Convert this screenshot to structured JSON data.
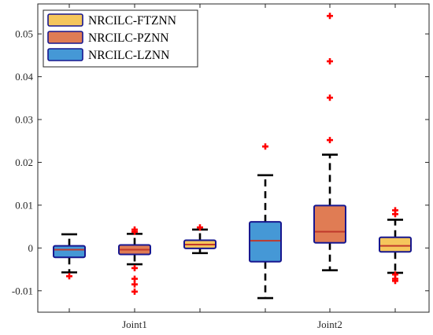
{
  "chart_data": {
    "type": "box",
    "grid": false,
    "legend_position": "top-left",
    "ylim": [
      -0.015,
      0.057
    ],
    "yticks": [
      -0.01,
      0,
      0.01,
      0.02,
      0.03,
      0.04,
      0.05
    ],
    "ytick_labels": [
      "-0.01",
      "0",
      "0.01",
      "0.02",
      "0.03",
      "0.04",
      "0.05"
    ],
    "groups": [
      "Joint1",
      "Joint2"
    ],
    "series": [
      {
        "name": "NRCILC-FTZNN",
        "color": "#F5C65C"
      },
      {
        "name": "NRCILC-PZNN",
        "color": "#E07C54"
      },
      {
        "name": "NRCILC-LZNN",
        "color": "#4598D6"
      }
    ],
    "outline_color": "#17178F",
    "median_color": "#C0392B",
    "whisker_color": "#000000",
    "outlier_color": "#FF0000",
    "boxes": [
      {
        "group": "Joint1",
        "series": "NRCILC-LZNN",
        "whisker_low": -0.0057,
        "q1": -0.0022,
        "median": -0.0004,
        "q3": 0.0005,
        "whisker_high": 0.0032,
        "outliers": [
          -0.0066
        ]
      },
      {
        "group": "Joint1",
        "series": "NRCILC-PZNN",
        "whisker_low": -0.0038,
        "q1": -0.0015,
        "median": -0.0004,
        "q3": 0.0007,
        "whisker_high": 0.0033,
        "outliers": [
          -0.0047,
          -0.0072,
          -0.0085,
          -0.0102,
          0.0038,
          0.0043
        ]
      },
      {
        "group": "Joint1",
        "series": "NRCILC-FTZNN",
        "whisker_low": -0.0012,
        "q1": -0.0001,
        "median": 0.0008,
        "q3": 0.0018,
        "whisker_high": 0.0043,
        "outliers": [
          0.0048
        ]
      },
      {
        "group": "Joint2",
        "series": "NRCILC-LZNN",
        "whisker_low": -0.0117,
        "q1": -0.0032,
        "median": 0.0017,
        "q3": 0.0061,
        "whisker_high": 0.017,
        "outliers": [
          0.0237
        ]
      },
      {
        "group": "Joint2",
        "series": "NRCILC-PZNN",
        "whisker_low": -0.0052,
        "q1": 0.0012,
        "median": 0.0038,
        "q3": 0.0099,
        "whisker_high": 0.0218,
        "outliers": [
          0.0252,
          0.0351,
          0.0436,
          0.0542
        ]
      },
      {
        "group": "Joint2",
        "series": "NRCILC-FTZNN",
        "whisker_low": -0.0058,
        "q1": -0.0009,
        "median": 0.0005,
        "q3": 0.0025,
        "whisker_high": 0.0066,
        "outliers": [
          -0.0062,
          -0.0072,
          -0.0077,
          0.0079,
          0.0088
        ]
      }
    ]
  }
}
